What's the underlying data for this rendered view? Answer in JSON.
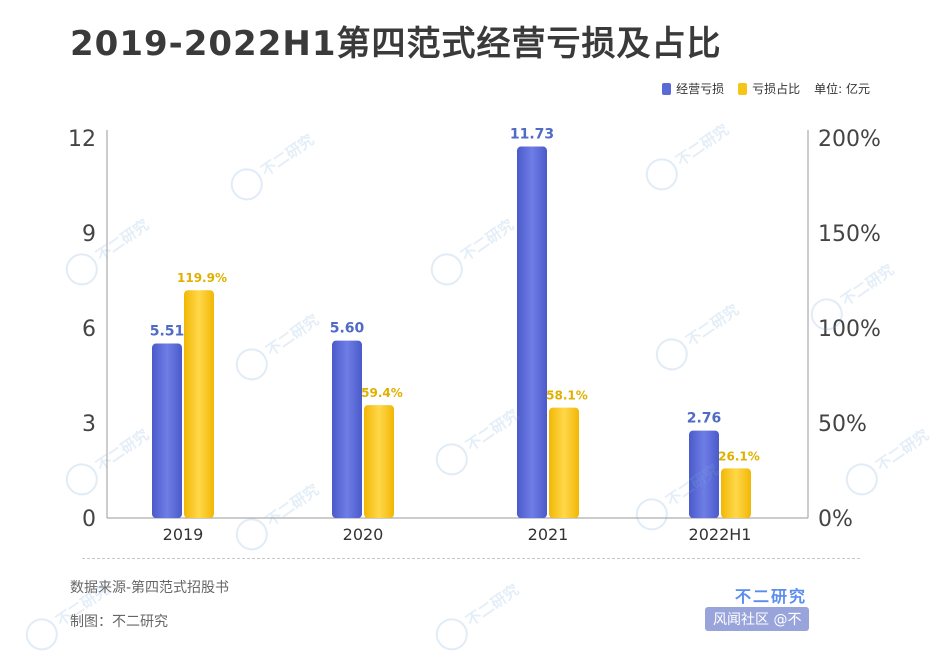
{
  "title": "2019-2022H1第四范式经营亏损及占比",
  "legend": {
    "series1": "经营亏损",
    "series2": "亏损占比",
    "unit": "单位: 亿元"
  },
  "colors": {
    "loss": "#5a6ad6",
    "ratio": "#f5c518",
    "ratio_label": "#e0b000",
    "loss_label": "#4f6bc6"
  },
  "chart_data": {
    "type": "bar",
    "categories": [
      "2019",
      "2020",
      "2021",
      "2022H1"
    ],
    "series": [
      {
        "name": "经营亏损",
        "axis": "left",
        "values": [
          5.51,
          5.6,
          11.73,
          2.76
        ],
        "labels": [
          "5.51",
          "5.60",
          "11.73",
          "2.76"
        ]
      },
      {
        "name": "亏损占比",
        "axis": "right",
        "values": [
          119.9,
          59.4,
          58.1,
          26.1
        ],
        "labels": [
          "119.9%",
          "59.4%",
          "58.1%",
          "26.1%"
        ]
      }
    ],
    "y_left": {
      "ticks": [
        "0",
        "3",
        "6",
        "9",
        "12"
      ],
      "ylim": [
        0,
        12
      ]
    },
    "y_right": {
      "ticks": [
        "0%",
        "50%",
        "100%",
        "150%",
        "200%"
      ],
      "ylim": [
        0,
        200
      ]
    },
    "grid": false,
    "legend_position": "top-right"
  },
  "footer": {
    "source": "数据来源-第四范式招股书",
    "maker": "制图：不二研究",
    "brand": "不二研究",
    "credit": "风闻社区 @不"
  },
  "watermark": "不二研究"
}
